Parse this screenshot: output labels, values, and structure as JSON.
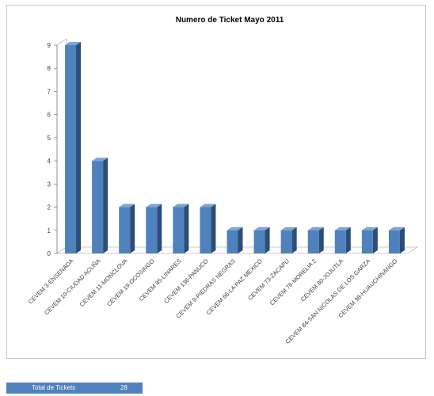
{
  "chart_data": {
    "type": "bar",
    "title": "Numero de Ticket Mayo 2011",
    "categories": [
      "CEVEM 3-ENSENADA",
      "CEVEM 10-CIUDAD ACUÑA",
      "CEVEM 11-MONCLOVA",
      "CEVEM 19-OCOSINGO",
      "CEVEM 85-LINARES",
      "CEVEM 136-PANUCO",
      "CEVEM 9-PIEDRAS NEGRAS",
      "CEVEM 66-LA PAZ MEXICO",
      "CEVEM 73-ZACAPU",
      "CEVEM 76-MORELIA 2",
      "CEVEM 80-JOJUTLA",
      "CEVEM 84-SAN NICOLAS DE LOS GARZA",
      "CEVEM 98-HUAUCHINANGO"
    ],
    "values": [
      9,
      4,
      2,
      2,
      2,
      2,
      1,
      1,
      1,
      1,
      1,
      1,
      1
    ],
    "yticks": [
      "0",
      "1",
      "2",
      "3",
      "4",
      "5",
      "6",
      "7",
      "8",
      "9"
    ],
    "ylim": [
      0,
      9
    ],
    "grid": false,
    "style": "3d-column",
    "bar_color": "#4f81bd"
  },
  "summary": {
    "label": "Total de Tickets",
    "value": "28"
  }
}
